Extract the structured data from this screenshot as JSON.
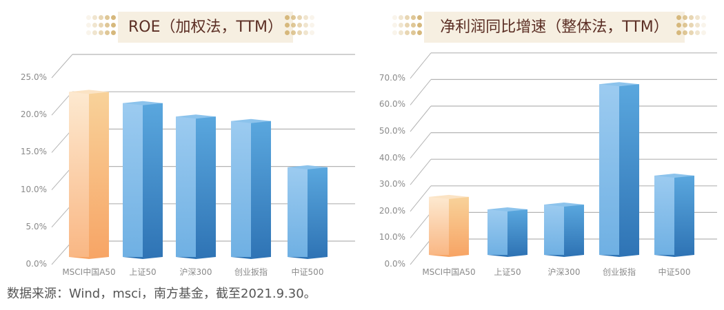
{
  "source_note": "数据来源：Wind，msci，南方基金，截至2021.9.30。",
  "colors": {
    "highlight_top": "#fde9d0",
    "highlight_bottom": "#f7a566",
    "bar_light": "#9ccbf0",
    "bar_mid": "#5aa7de",
    "bar_dark": "#2f74b5",
    "gridline": "#b4b4b4",
    "banner_bg": "#f6efe1",
    "banner_text": "#5b2e24",
    "dot": "#d6b77a"
  },
  "chart_data": [
    {
      "type": "bar",
      "title": "ROE（加权法，TTM）",
      "xlabel": "",
      "ylabel": "",
      "categories": [
        "MSCI中国A50",
        "上证50",
        "沪深300",
        "创业扳指",
        "中证500"
      ],
      "values": [
        22.1,
        20.6,
        18.8,
        18.2,
        12.0
      ],
      "unit": "%",
      "yticks": [
        "0.0%",
        "5.0%",
        "10.0%",
        "15.0%",
        "20.0%",
        "25.0%"
      ],
      "ylim": [
        0,
        25
      ],
      "grid": true,
      "style": "3d-column",
      "highlight_index": 0
    },
    {
      "type": "bar",
      "title": "净利润同比增速（整体法，TTM）",
      "xlabel": "",
      "ylabel": "",
      "categories": [
        "MSCI中国A50",
        "上证50",
        "沪深300",
        "创业扳指",
        "中证500"
      ],
      "values": [
        21.8,
        17.1,
        18.9,
        64.2,
        29.8
      ],
      "unit": "%",
      "yticks": [
        "0.0%",
        "10.0%",
        "20.0%",
        "30.0%",
        "40.0%",
        "50.0%",
        "60.0%",
        "70.0%"
      ],
      "ylim": [
        0,
        70
      ],
      "grid": true,
      "style": "3d-column",
      "highlight_index": 0
    }
  ]
}
